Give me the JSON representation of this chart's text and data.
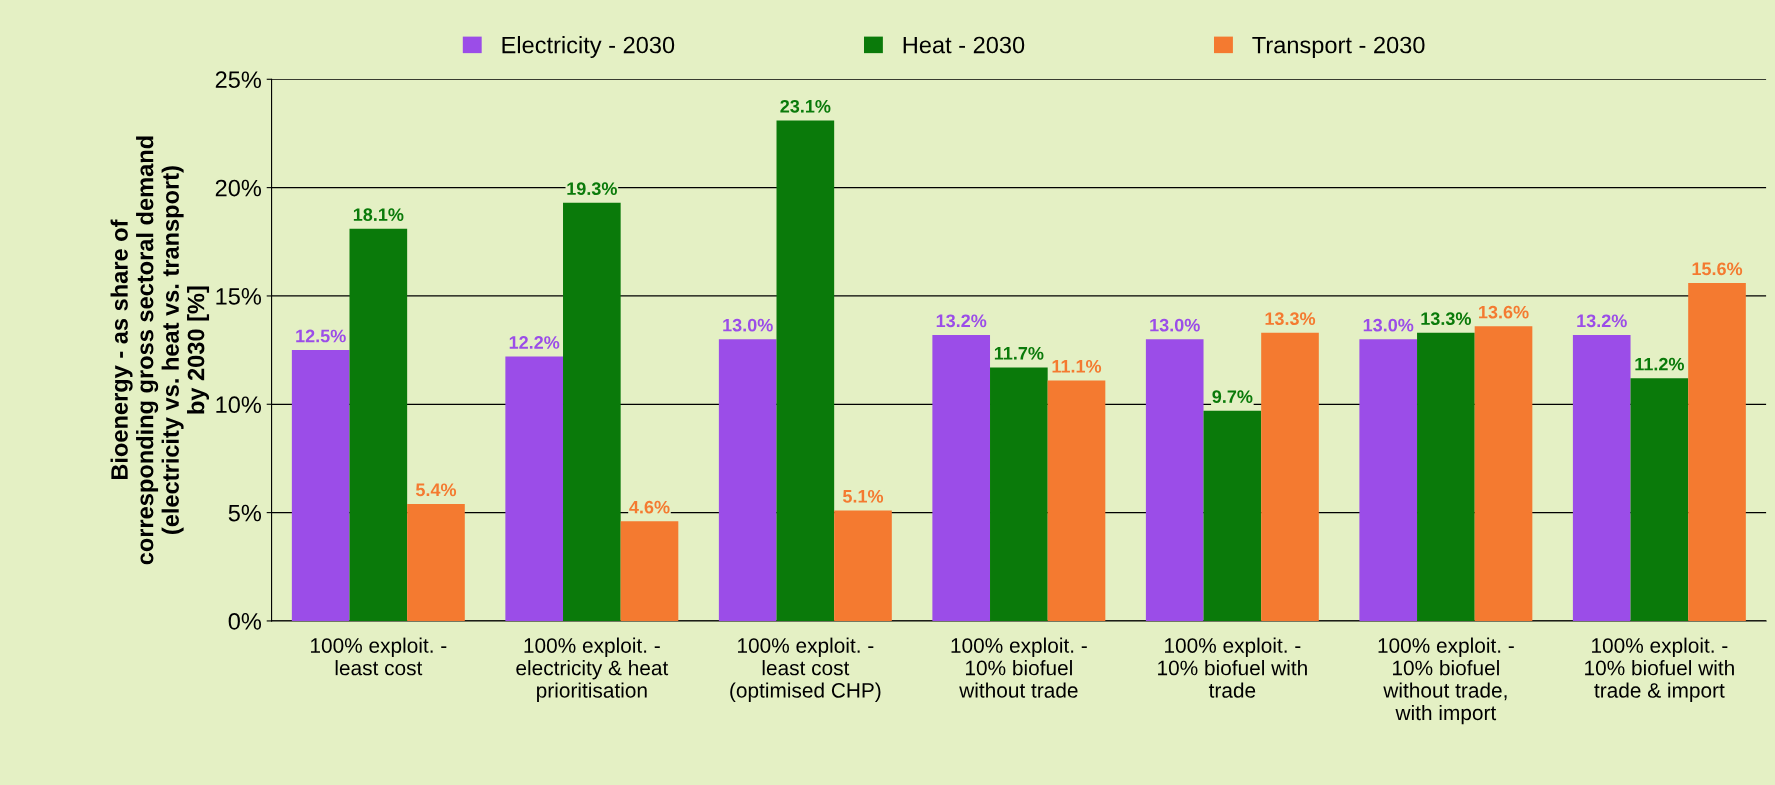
{
  "chart_data": {
    "type": "bar",
    "ylabel": "Bioenergy - as share of\ncorresponding gross sectoral demand\n(electricity vs. heat vs. transport)\nby 2030 [%]",
    "categories": [
      "100% exploit. -\nleast cost",
      "100% exploit. -\nelectricity & heat\nprioritisation",
      "100% exploit. -\nleast cost\n(optimised CHP)",
      "100% exploit. -\n10% biofuel\nwithout trade",
      "100% exploit. -\n10% biofuel with\ntrade",
      "100% exploit. -\n10% biofuel\nwithout trade,\nwith import",
      "100% exploit. -\n10% biofuel with\ntrade & import"
    ],
    "series": [
      {
        "name": "Electricity - 2030",
        "color": "#9b4de8",
        "values": [
          12.5,
          12.2,
          13.0,
          13.2,
          13.0,
          13.0,
          13.2
        ],
        "value_labels": [
          "12.5%",
          "12.2%",
          "13.0%",
          "13.2%",
          "13.0%",
          "13.0%",
          "13.2%"
        ]
      },
      {
        "name": "Heat - 2030",
        "color": "#0a7a0a",
        "values": [
          18.1,
          19.3,
          23.1,
          11.7,
          9.7,
          13.3,
          11.2
        ],
        "value_labels": [
          "18.1%",
          "19.3%",
          "23.1%",
          "11.7%",
          "9.7%",
          "13.3%",
          "11.2%"
        ]
      },
      {
        "name": "Transport - 2030",
        "color": "#f47a30",
        "values": [
          5.4,
          4.6,
          5.1,
          11.1,
          13.3,
          13.6,
          15.6
        ],
        "value_labels": [
          "5.4%",
          "4.6%",
          "5.1%",
          "11.1%",
          "13.3%",
          "13.6%",
          "15.6%"
        ]
      }
    ],
    "ylim": [
      0,
      25
    ],
    "yticks": [
      {
        "value": 0,
        "label": "0%"
      },
      {
        "value": 5,
        "label": "5%"
      },
      {
        "value": 10,
        "label": "10%"
      },
      {
        "value": 15,
        "label": "15%"
      },
      {
        "value": 20,
        "label": "20%"
      },
      {
        "value": 25,
        "label": "25%"
      }
    ],
    "grid": "y",
    "legend": "top"
  }
}
